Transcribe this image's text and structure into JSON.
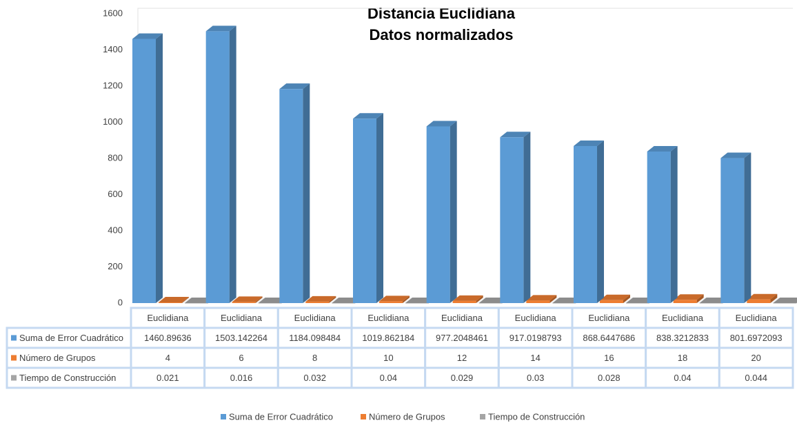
{
  "chart_data": {
    "type": "bar",
    "title": "Distancia Euclidiana",
    "subtitle": "Datos normalizados",
    "categories": [
      "Euclidiana",
      "Euclidiana",
      "Euclidiana",
      "Euclidiana",
      "Euclidiana",
      "Euclidiana",
      "Euclidiana",
      "Euclidiana",
      "Euclidiana"
    ],
    "series": [
      {
        "name": "Suma de Error Cuadrático",
        "color": "#5b9bd5",
        "values": [
          1460.89636,
          1503.142264,
          1184.098484,
          1019.862184,
          977.2048461,
          917.0198793,
          868.6447686,
          838.3212833,
          801.6972093
        ]
      },
      {
        "name": "Número de Grupos",
        "color": "#ed7d31",
        "values": [
          4,
          6,
          8,
          10,
          12,
          14,
          16,
          18,
          20
        ]
      },
      {
        "name": "Tiempo de Construcción",
        "color": "#a5a5a5",
        "values": [
          0.021,
          0.016,
          0.032,
          0.04,
          0.029,
          0.03,
          0.028,
          0.04,
          0.044
        ]
      }
    ],
    "ylim": [
      0,
      1600
    ],
    "yticks": [
      0,
      200,
      400,
      600,
      800,
      1000,
      1200,
      1400,
      1600
    ],
    "grid": false
  }
}
